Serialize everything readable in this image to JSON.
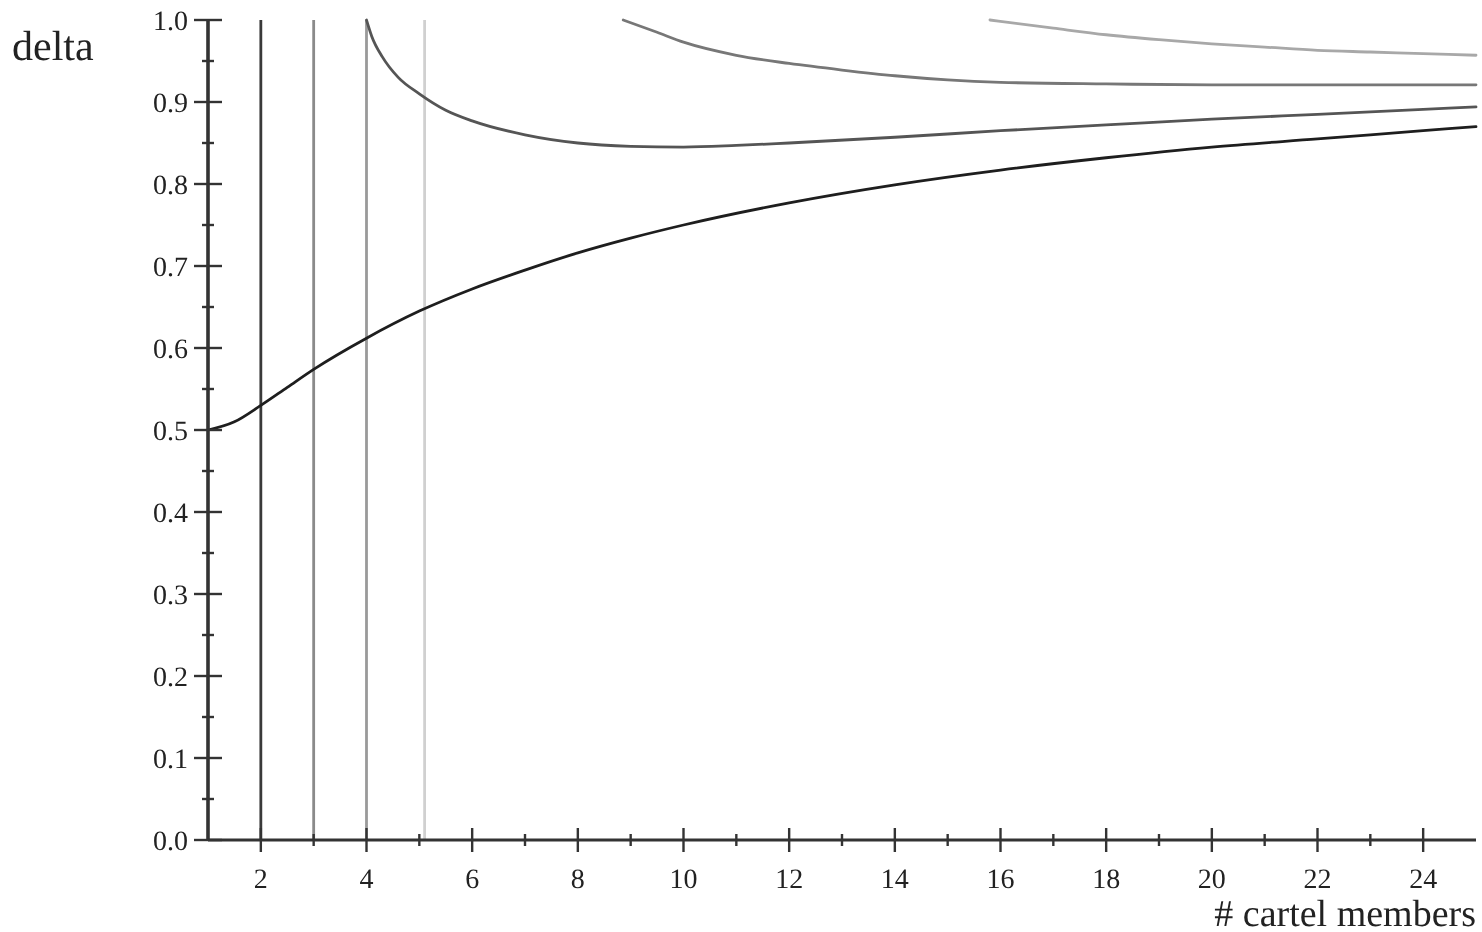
{
  "chart_data": {
    "type": "line",
    "xlabel": "# cartel members",
    "ylabel": "delta",
    "xlim": [
      1,
      25
    ],
    "ylim": [
      0,
      1
    ],
    "xticks": [
      2,
      {
        "value": 3,
        "label": null
      },
      4,
      {
        "value": 5,
        "label": null
      },
      6,
      {
        "value": 7,
        "label": null
      },
      8,
      {
        "value": 9,
        "label": null
      },
      10,
      {
        "value": 11,
        "label": null
      },
      12,
      {
        "value": 13,
        "label": null
      },
      14,
      {
        "value": 15,
        "label": null
      },
      16,
      {
        "value": 17,
        "label": null
      },
      18,
      {
        "value": 19,
        "label": null
      },
      20,
      {
        "value": 21,
        "label": null
      },
      22,
      {
        "value": 23,
        "label": null
      },
      24
    ],
    "yticks": [
      {
        "value": 0,
        "label": "0.0"
      },
      {
        "value": 0.05,
        "label": null
      },
      0.1,
      {
        "value": 0.15,
        "label": null
      },
      0.2,
      {
        "value": 0.25,
        "label": null
      },
      0.3,
      {
        "value": 0.35,
        "label": null
      },
      0.4,
      {
        "value": 0.45,
        "label": null
      },
      0.5,
      {
        "value": 0.55,
        "label": null
      },
      0.6,
      {
        "value": 0.65,
        "label": null
      },
      0.7,
      {
        "value": 0.75,
        "label": null
      },
      0.8,
      {
        "value": 0.85,
        "label": null
      },
      0.9,
      {
        "value": 0.95,
        "label": null
      },
      {
        "value": 1,
        "label": "1.0"
      }
    ],
    "line_style": "solid",
    "series": [
      {
        "color": "#1e1e1e",
        "x": [
          1,
          1.5,
          2,
          2.5,
          3,
          4,
          5,
          6,
          7,
          8,
          9,
          10,
          12,
          14,
          16,
          18,
          20,
          22,
          24,
          25
        ],
        "values": [
          0.5,
          0.51,
          0.53,
          0.552,
          0.574,
          0.612,
          0.645,
          0.672,
          0.695,
          0.716,
          0.734,
          0.75,
          0.777,
          0.799,
          0.817,
          0.832,
          0.845,
          0.855,
          0.865,
          0.87
        ]
      },
      {
        "color": "#555555",
        "x": [
          4,
          4.1,
          4.3,
          4.6,
          5,
          5.5,
          6,
          7,
          8,
          9,
          10,
          11,
          12,
          14,
          16,
          18,
          20,
          22,
          24,
          25
        ],
        "values": [
          1,
          0.98,
          0.955,
          0.93,
          0.91,
          0.89,
          0.877,
          0.86,
          0.85,
          0.846,
          0.845,
          0.847,
          0.85,
          0.857,
          0.865,
          0.872,
          0.879,
          0.885,
          0.891,
          0.894
        ]
      },
      {
        "color": "#777777",
        "x": [
          8.86,
          9.5,
          10,
          11,
          12,
          13,
          14,
          15,
          16,
          18,
          20,
          22,
          25
        ],
        "values": [
          1,
          0.985,
          0.973,
          0.957,
          0.947,
          0.939,
          0.932,
          0.927,
          0.924,
          0.922,
          0.921,
          0.921,
          0.921
        ]
      },
      {
        "color": "#a8a8a8",
        "x": [
          15.8,
          17,
          18,
          19,
          20,
          21,
          22,
          23,
          24,
          25
        ],
        "values": [
          1,
          0.99,
          0.982,
          0.976,
          0.971,
          0.967,
          0.963,
          0.961,
          0.959,
          0.957
        ]
      }
    ],
    "ref_lines": [
      {
        "axis": "x",
        "value": 2,
        "color": "#3a3a3a"
      },
      {
        "axis": "x",
        "value": 3,
        "color": "#8a8a8a"
      },
      {
        "axis": "x",
        "value": 4,
        "color": "#9a9a9a"
      },
      {
        "axis": "x",
        "value": 5.1,
        "color": "#d0d0d0"
      }
    ]
  }
}
